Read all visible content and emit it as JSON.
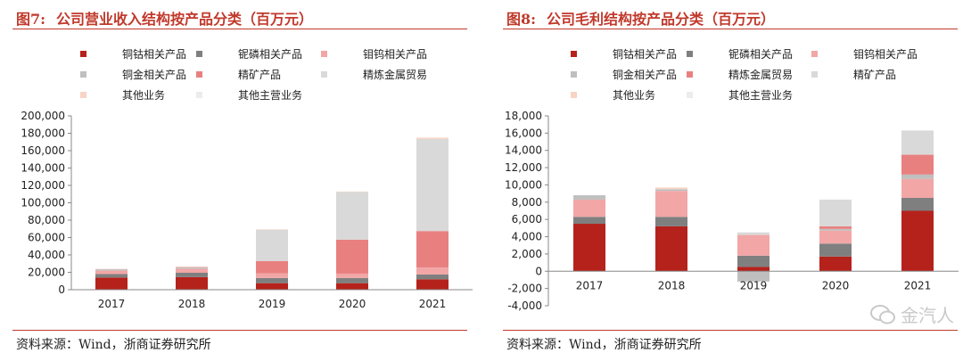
{
  "source_text": "资料来源：Wind，浙商证券研究所",
  "watermark_text": "金汽人",
  "chart_data": [
    {
      "type": "bar",
      "stacked": true,
      "figure_no": "图7:",
      "title": "公司营业收入结构按产品分类（百万元）",
      "categories": [
        "2017",
        "2018",
        "2019",
        "2020",
        "2021"
      ],
      "ylim": [
        0,
        200000
      ],
      "yticks": [
        0,
        20000,
        40000,
        60000,
        80000,
        100000,
        120000,
        140000,
        160000,
        180000,
        200000
      ],
      "ytick_labels": [
        "0",
        "20,000",
        "40,000",
        "60,000",
        "80,000",
        "100,000",
        "120,000",
        "140,000",
        "160,000",
        "180,000",
        "200,000"
      ],
      "xlabel": "",
      "ylabel": "",
      "legend_rows": [
        [
          "铜钴相关产品",
          "铌磷相关产品",
          "钼钨相关产品"
        ],
        [
          "铜金相关产品",
          "精矿产品",
          "精炼金属贸易"
        ],
        [
          "其他业务",
          "其他主营业务"
        ]
      ],
      "series": [
        {
          "name": "铜钴相关产品",
          "color": "#b5221b",
          "values": [
            14000,
            14500,
            7500,
            7500,
            12000
          ]
        },
        {
          "name": "铌磷相关产品",
          "color": "#7f7f7f",
          "values": [
            4000,
            5000,
            6000,
            6000,
            5500
          ]
        },
        {
          "name": "钼钨相关产品",
          "color": "#f2a6a6",
          "values": [
            4000,
            4500,
            5500,
            5000,
            8000
          ]
        },
        {
          "name": "铜金相关产品",
          "color": "#bfbfbf",
          "values": [
            1500,
            1500,
            0,
            0,
            0
          ]
        },
        {
          "name": "精矿产品",
          "color": "#e98080",
          "values": [
            0,
            500,
            14000,
            39000,
            42000
          ]
        },
        {
          "name": "精炼金属贸易",
          "color": "#d9d9d9",
          "values": [
            0,
            0,
            36000,
            55000,
            106000
          ]
        },
        {
          "name": "其他业务",
          "color": "#f7d4c6",
          "values": [
            500,
            500,
            500,
            500,
            1500
          ]
        },
        {
          "name": "其他主营业务",
          "color": "#ececec",
          "values": [
            0,
            0,
            0,
            0,
            0
          ]
        }
      ]
    },
    {
      "type": "bar",
      "stacked": true,
      "figure_no": "图8:",
      "title": "公司毛利结构按产品分类（百万元）",
      "categories": [
        "2017",
        "2018",
        "2019",
        "2020",
        "2021"
      ],
      "ylim": [
        -4000,
        18000
      ],
      "yticks": [
        -4000,
        -2000,
        0,
        2000,
        4000,
        6000,
        8000,
        10000,
        12000,
        14000,
        16000,
        18000
      ],
      "ytick_labels": [
        "-4,000",
        "-2,000",
        "0",
        "2,000",
        "4,000",
        "6,000",
        "8,000",
        "10,000",
        "12,000",
        "14,000",
        "16,000",
        "18,000"
      ],
      "xlabel": "",
      "ylabel": "",
      "legend_rows": [
        [
          "铜钴相关产品",
          "铌磷相关产品",
          "钼钨相关产品"
        ],
        [
          "铜金相关产品",
          "精炼金属贸易",
          "精矿产品"
        ],
        [
          "其他业务",
          "其他主营业务"
        ]
      ],
      "series": [
        {
          "name": "铜钴相关产品",
          "color": "#b5221b",
          "values": [
            5500,
            5200,
            500,
            1700,
            7000
          ]
        },
        {
          "name": "铌磷相关产品",
          "color": "#7f7f7f",
          "values": [
            800,
            1100,
            1300,
            1500,
            1500
          ]
        },
        {
          "name": "钼钨相关产品",
          "color": "#f2a6a6",
          "values": [
            2000,
            3000,
            2400,
            1500,
            2200
          ]
        },
        {
          "name": "铜金相关产品",
          "color": "#bfbfbf",
          "values": [
            500,
            200,
            -1200,
            200,
            500
          ]
        },
        {
          "name": "精炼金属贸易",
          "color": "#e98080",
          "values": [
            0,
            0,
            0,
            300,
            2300
          ]
        },
        {
          "name": "精矿产品",
          "color": "#d9d9d9",
          "values": [
            0,
            0,
            300,
            3100,
            2800
          ]
        },
        {
          "name": "其他业务",
          "color": "#f7d4c6",
          "values": [
            0,
            200,
            0,
            0,
            0
          ]
        },
        {
          "name": "其他主营业务",
          "color": "#ececec",
          "values": [
            0,
            0,
            0,
            0,
            0
          ]
        }
      ]
    }
  ]
}
